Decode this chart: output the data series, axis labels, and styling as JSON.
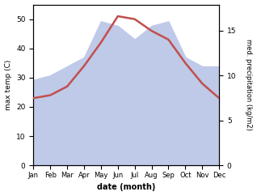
{
  "months": [
    "Jan",
    "Feb",
    "Mar",
    "Apr",
    "May",
    "Jun",
    "Jul",
    "Aug",
    "Sep",
    "Oct",
    "Nov",
    "Dec"
  ],
  "month_positions": [
    0,
    1,
    2,
    3,
    4,
    5,
    6,
    7,
    8,
    9,
    10,
    11
  ],
  "temperature": [
    23,
    24,
    27,
    34,
    42,
    51,
    50,
    46,
    43,
    35,
    28,
    23
  ],
  "precipitation": [
    9.5,
    10,
    11,
    12,
    16,
    15.5,
    14,
    15.5,
    16,
    12,
    11,
    11
  ],
  "temp_color": "#c0504d",
  "precip_fill_color": "#bfc9e8",
  "temp_ylim": [
    0,
    55
  ],
  "precip_ylim": [
    0,
    17.875
  ],
  "temp_yticks": [
    0,
    10,
    20,
    30,
    40,
    50
  ],
  "precip_yticks": [
    0,
    5,
    10,
    15
  ],
  "ylabel_left": "max temp (C)",
  "ylabel_right": "med. precipitation (kg/m2)",
  "xlabel": "date (month)",
  "fig_width": 3.18,
  "fig_height": 2.42,
  "dpi": 100
}
